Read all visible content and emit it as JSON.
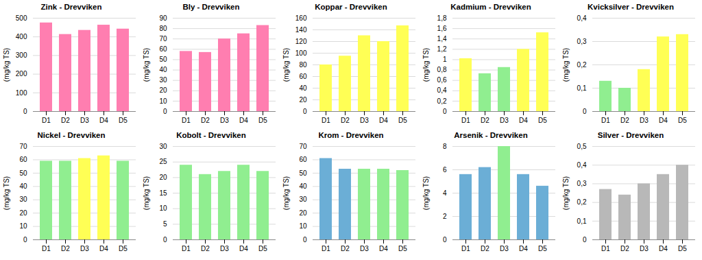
{
  "chart_data": [
    {
      "type": "bar",
      "title": "Zink - Drevviken",
      "categories": [
        "D1",
        "D2",
        "D3",
        "D4",
        "D5"
      ],
      "values": [
        475,
        413,
        435,
        463,
        442
      ],
      "colors": [
        "#FF7EB0",
        "#FF7EB0",
        "#FF7EB0",
        "#FF7EB0",
        "#FF7EB0"
      ],
      "ylabel": "(mg/kg TS)",
      "ylim": [
        0,
        500
      ],
      "yticks": [
        0,
        100,
        200,
        300,
        400,
        500
      ],
      "grid": true
    },
    {
      "type": "bar",
      "title": "Bly - Drevviken",
      "categories": [
        "D1",
        "D2",
        "D3",
        "D4",
        "D5"
      ],
      "values": [
        58,
        57,
        70,
        75,
        83
      ],
      "colors": [
        "#FF7EB0",
        "#FF7EB0",
        "#FF7EB0",
        "#FF7EB0",
        "#FF7EB0"
      ],
      "ylabel": "(mg/kg TS)",
      "ylim": [
        0,
        90
      ],
      "yticks": [
        0,
        10,
        20,
        30,
        40,
        50,
        60,
        70,
        80,
        90
      ],
      "grid": true
    },
    {
      "type": "bar",
      "title": "Koppar - Drevviken",
      "categories": [
        "D1",
        "D2",
        "D3",
        "D4",
        "D5"
      ],
      "values": [
        80,
        95,
        130,
        120,
        147
      ],
      "colors": [
        "#FFFF55",
        "#FFFF55",
        "#FFFF55",
        "#FFFF55",
        "#FFFF55"
      ],
      "ylabel": "(mg/kg TS)",
      "ylim": [
        0,
        160
      ],
      "yticks": [
        0,
        20,
        40,
        60,
        80,
        100,
        120,
        140,
        160
      ],
      "grid": true
    },
    {
      "type": "bar",
      "title": "Kadmium - Drevviken",
      "categories": [
        "D1",
        "D2",
        "D3",
        "D4",
        "D5"
      ],
      "values": [
        1.02,
        0.73,
        0.85,
        1.2,
        1.52
      ],
      "colors": [
        "#FFFF55",
        "#90EE90",
        "#90EE90",
        "#FFFF55",
        "#FFFF55"
      ],
      "ylabel": "(mg/kg TS)",
      "ylim": [
        0,
        1.8
      ],
      "yticks": [
        0,
        {
          "value": 0.2,
          "label": "0,2"
        },
        {
          "value": 0.4,
          "label": "0,4"
        },
        {
          "value": 0.6,
          "label": "0,6"
        },
        {
          "value": 0.8,
          "label": "0,8"
        },
        1,
        {
          "value": 1.2,
          "label": "1,2"
        },
        {
          "value": 1.4,
          "label": "1,4"
        },
        {
          "value": 1.6,
          "label": "1,6"
        },
        {
          "value": 1.8,
          "label": "1,8"
        }
      ],
      "grid": true
    },
    {
      "type": "bar",
      "title": "Kvicksilver - Drevviken",
      "categories": [
        "D1",
        "D2",
        "D3",
        "D4",
        "D5"
      ],
      "values": [
        0.13,
        0.1,
        0.18,
        0.32,
        0.33
      ],
      "colors": [
        "#90EE90",
        "#90EE90",
        "#FFFF55",
        "#FFFF55",
        "#FFFF55"
      ],
      "ylabel": "(mg/kg TS)",
      "ylim": [
        0,
        0.4
      ],
      "yticks": [
        0,
        {
          "value": 0.1,
          "label": "0,1"
        },
        {
          "value": 0.2,
          "label": "0,2"
        },
        {
          "value": 0.3,
          "label": "0,3"
        },
        {
          "value": 0.4,
          "label": "0,4"
        }
      ],
      "grid": true
    },
    {
      "type": "bar",
      "title": "Nickel - Drevviken",
      "categories": [
        "D1",
        "D2",
        "D3",
        "D4",
        "D5"
      ],
      "values": [
        59,
        59,
        61,
        63,
        59
      ],
      "colors": [
        "#90EE90",
        "#90EE90",
        "#FFFF55",
        "#FFFF55",
        "#90EE90"
      ],
      "ylabel": "(mg/kg TS)",
      "ylim": [
        0,
        70
      ],
      "yticks": [
        0,
        10,
        20,
        30,
        40,
        50,
        60,
        70
      ],
      "grid": true
    },
    {
      "type": "bar",
      "title": "Kobolt - Drevviken",
      "categories": [
        "D1",
        "D2",
        "D3",
        "D4",
        "D5"
      ],
      "values": [
        24,
        21,
        22,
        24,
        22
      ],
      "colors": [
        "#90EE90",
        "#90EE90",
        "#90EE90",
        "#90EE90",
        "#90EE90"
      ],
      "ylabel": "(mg/kg TS)",
      "ylim": [
        0,
        30
      ],
      "yticks": [
        0,
        5,
        10,
        15,
        20,
        25,
        30
      ],
      "grid": true
    },
    {
      "type": "bar",
      "title": "Krom - Drevviken",
      "categories": [
        "D1",
        "D2",
        "D3",
        "D4",
        "D5"
      ],
      "values": [
        61,
        53,
        53,
        53,
        52
      ],
      "colors": [
        "#6BAED6",
        "#6BAED6",
        "#90EE90",
        "#90EE90",
        "#90EE90"
      ],
      "ylabel": "(mg/kg TS)",
      "ylim": [
        0,
        70
      ],
      "yticks": [
        0,
        10,
        20,
        30,
        40,
        50,
        60,
        70
      ],
      "grid": true
    },
    {
      "type": "bar",
      "title": "Arsenik - Drevviken",
      "categories": [
        "D1",
        "D2",
        "D3",
        "D4",
        "D5"
      ],
      "values": [
        5.6,
        6.2,
        8.0,
        5.6,
        4.6
      ],
      "colors": [
        "#6BAED6",
        "#6BAED6",
        "#90EE90",
        "#6BAED6",
        "#6BAED6"
      ],
      "ylabel": "(mg/kg TS)",
      "ylim": [
        0,
        8
      ],
      "yticks": [
        0,
        2,
        4,
        6,
        8
      ],
      "grid": true
    },
    {
      "type": "bar",
      "title": "Silver - Drevviken",
      "categories": [
        "D1",
        "D2",
        "D3",
        "D4",
        "D5"
      ],
      "values": [
        0.27,
        0.24,
        0.3,
        0.35,
        0.4
      ],
      "colors": [
        "#B8B8B8",
        "#B8B8B8",
        "#B8B8B8",
        "#B8B8B8",
        "#B8B8B8"
      ],
      "ylabel": "(mg/kg TS)",
      "ylim": [
        0,
        0.5
      ],
      "yticks": [
        0,
        {
          "value": 0.1,
          "label": "0,1"
        },
        {
          "value": 0.2,
          "label": "0,2"
        },
        {
          "value": 0.3,
          "label": "0,3"
        },
        {
          "value": 0.4,
          "label": "0,4"
        },
        {
          "value": 0.5,
          "label": "0,5"
        }
      ],
      "grid": true
    }
  ]
}
